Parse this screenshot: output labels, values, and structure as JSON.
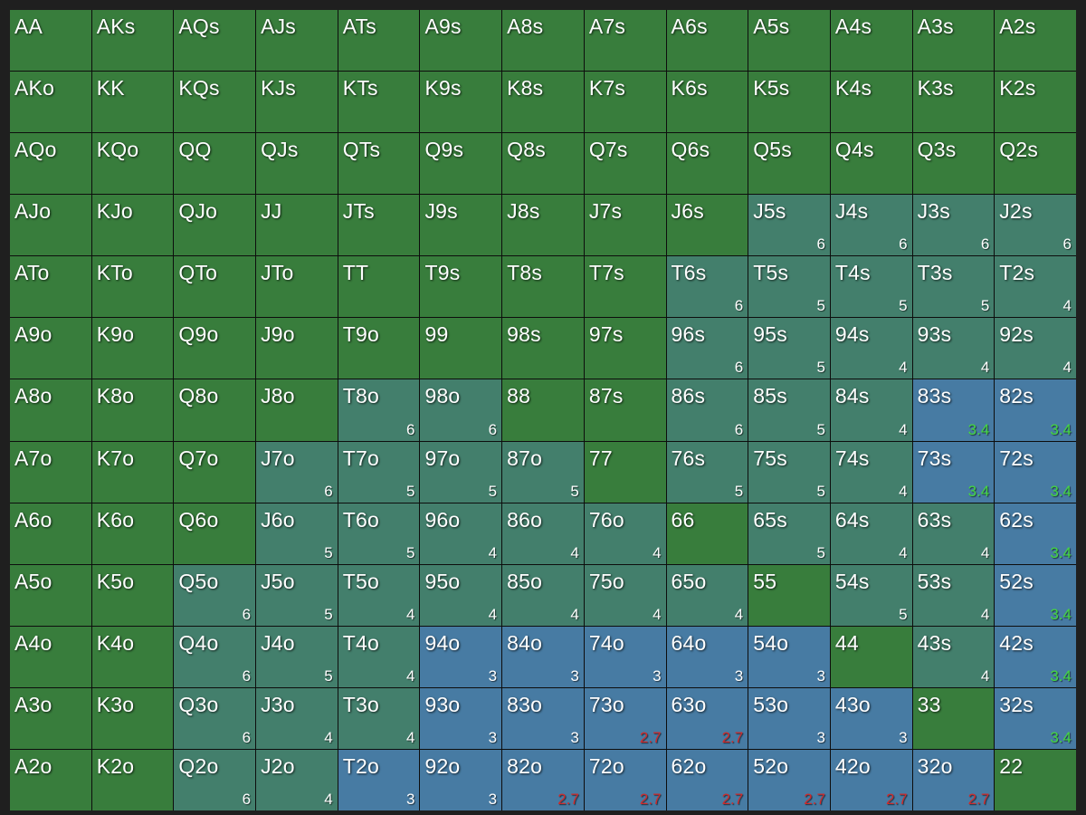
{
  "colors": {
    "background": "#1f1f1f",
    "grid_line": "#0d0d0d",
    "open": "#387d3c",
    "teal": "#437f6c",
    "blue": "#477ba3",
    "hand_text": "#ffffff",
    "badge_default": "#ffffff",
    "badge_green": "#45d641",
    "badge_red": "#d02a2a"
  },
  "rows": [
    [
      {
        "hand": "AA",
        "badge": ""
      },
      {
        "hand": "AKs",
        "badge": ""
      },
      {
        "hand": "AQs",
        "badge": ""
      },
      {
        "hand": "AJs",
        "badge": ""
      },
      {
        "hand": "ATs",
        "badge": ""
      },
      {
        "hand": "A9s",
        "badge": ""
      },
      {
        "hand": "A8s",
        "badge": ""
      },
      {
        "hand": "A7s",
        "badge": ""
      },
      {
        "hand": "A6s",
        "badge": ""
      },
      {
        "hand": "A5s",
        "badge": ""
      },
      {
        "hand": "A4s",
        "badge": ""
      },
      {
        "hand": "A3s",
        "badge": ""
      },
      {
        "hand": "A2s",
        "badge": ""
      }
    ],
    [
      {
        "hand": "AKo",
        "badge": ""
      },
      {
        "hand": "KK",
        "badge": ""
      },
      {
        "hand": "KQs",
        "badge": ""
      },
      {
        "hand": "KJs",
        "badge": ""
      },
      {
        "hand": "KTs",
        "badge": ""
      },
      {
        "hand": "K9s",
        "badge": ""
      },
      {
        "hand": "K8s",
        "badge": ""
      },
      {
        "hand": "K7s",
        "badge": ""
      },
      {
        "hand": "K6s",
        "badge": ""
      },
      {
        "hand": "K5s",
        "badge": ""
      },
      {
        "hand": "K4s",
        "badge": ""
      },
      {
        "hand": "K3s",
        "badge": ""
      },
      {
        "hand": "K2s",
        "badge": ""
      }
    ],
    [
      {
        "hand": "AQo",
        "badge": ""
      },
      {
        "hand": "KQo",
        "badge": ""
      },
      {
        "hand": "QQ",
        "badge": ""
      },
      {
        "hand": "QJs",
        "badge": ""
      },
      {
        "hand": "QTs",
        "badge": ""
      },
      {
        "hand": "Q9s",
        "badge": ""
      },
      {
        "hand": "Q8s",
        "badge": ""
      },
      {
        "hand": "Q7s",
        "badge": ""
      },
      {
        "hand": "Q6s",
        "badge": ""
      },
      {
        "hand": "Q5s",
        "badge": ""
      },
      {
        "hand": "Q4s",
        "badge": ""
      },
      {
        "hand": "Q3s",
        "badge": ""
      },
      {
        "hand": "Q2s",
        "badge": ""
      }
    ],
    [
      {
        "hand": "AJo",
        "badge": ""
      },
      {
        "hand": "KJo",
        "badge": ""
      },
      {
        "hand": "QJo",
        "badge": ""
      },
      {
        "hand": "JJ",
        "badge": ""
      },
      {
        "hand": "JTs",
        "badge": ""
      },
      {
        "hand": "J9s",
        "badge": ""
      },
      {
        "hand": "J8s",
        "badge": ""
      },
      {
        "hand": "J7s",
        "badge": ""
      },
      {
        "hand": "J6s",
        "badge": ""
      },
      {
        "hand": "J5s",
        "badge": "6",
        "tier": "teal"
      },
      {
        "hand": "J4s",
        "badge": "6",
        "tier": "teal"
      },
      {
        "hand": "J3s",
        "badge": "6",
        "tier": "teal"
      },
      {
        "hand": "J2s",
        "badge": "6",
        "tier": "teal"
      }
    ],
    [
      {
        "hand": "ATo",
        "badge": ""
      },
      {
        "hand": "KTo",
        "badge": ""
      },
      {
        "hand": "QTo",
        "badge": ""
      },
      {
        "hand": "JTo",
        "badge": ""
      },
      {
        "hand": "TT",
        "badge": ""
      },
      {
        "hand": "T9s",
        "badge": ""
      },
      {
        "hand": "T8s",
        "badge": ""
      },
      {
        "hand": "T7s",
        "badge": ""
      },
      {
        "hand": "T6s",
        "badge": "6",
        "tier": "teal"
      },
      {
        "hand": "T5s",
        "badge": "5",
        "tier": "teal"
      },
      {
        "hand": "T4s",
        "badge": "5",
        "tier": "teal"
      },
      {
        "hand": "T3s",
        "badge": "5",
        "tier": "teal"
      },
      {
        "hand": "T2s",
        "badge": "4",
        "tier": "teal"
      }
    ],
    [
      {
        "hand": "A9o",
        "badge": ""
      },
      {
        "hand": "K9o",
        "badge": ""
      },
      {
        "hand": "Q9o",
        "badge": ""
      },
      {
        "hand": "J9o",
        "badge": ""
      },
      {
        "hand": "T9o",
        "badge": ""
      },
      {
        "hand": "99",
        "badge": ""
      },
      {
        "hand": "98s",
        "badge": ""
      },
      {
        "hand": "97s",
        "badge": ""
      },
      {
        "hand": "96s",
        "badge": "6",
        "tier": "teal"
      },
      {
        "hand": "95s",
        "badge": "5",
        "tier": "teal"
      },
      {
        "hand": "94s",
        "badge": "4",
        "tier": "teal"
      },
      {
        "hand": "93s",
        "badge": "4",
        "tier": "teal"
      },
      {
        "hand": "92s",
        "badge": "4",
        "tier": "teal"
      }
    ],
    [
      {
        "hand": "A8o",
        "badge": ""
      },
      {
        "hand": "K8o",
        "badge": ""
      },
      {
        "hand": "Q8o",
        "badge": ""
      },
      {
        "hand": "J8o",
        "badge": ""
      },
      {
        "hand": "T8o",
        "badge": "6",
        "tier": "teal"
      },
      {
        "hand": "98o",
        "badge": "6",
        "tier": "teal"
      },
      {
        "hand": "88",
        "badge": ""
      },
      {
        "hand": "87s",
        "badge": ""
      },
      {
        "hand": "86s",
        "badge": "6",
        "tier": "teal"
      },
      {
        "hand": "85s",
        "badge": "5",
        "tier": "teal"
      },
      {
        "hand": "84s",
        "badge": "4",
        "tier": "teal"
      },
      {
        "hand": "83s",
        "badge": "3.4",
        "tier": "blue",
        "badge_color": "green"
      },
      {
        "hand": "82s",
        "badge": "3.4",
        "tier": "blue",
        "badge_color": "green"
      }
    ],
    [
      {
        "hand": "A7o",
        "badge": ""
      },
      {
        "hand": "K7o",
        "badge": ""
      },
      {
        "hand": "Q7o",
        "badge": ""
      },
      {
        "hand": "J7o",
        "badge": "6",
        "tier": "teal"
      },
      {
        "hand": "T7o",
        "badge": "5",
        "tier": "teal"
      },
      {
        "hand": "97o",
        "badge": "5",
        "tier": "teal"
      },
      {
        "hand": "87o",
        "badge": "5",
        "tier": "teal"
      },
      {
        "hand": "77",
        "badge": ""
      },
      {
        "hand": "76s",
        "badge": "5",
        "tier": "teal"
      },
      {
        "hand": "75s",
        "badge": "5",
        "tier": "teal"
      },
      {
        "hand": "74s",
        "badge": "4",
        "tier": "teal"
      },
      {
        "hand": "73s",
        "badge": "3.4",
        "tier": "blue",
        "badge_color": "green"
      },
      {
        "hand": "72s",
        "badge": "3.4",
        "tier": "blue",
        "badge_color": "green"
      }
    ],
    [
      {
        "hand": "A6o",
        "badge": ""
      },
      {
        "hand": "K6o",
        "badge": ""
      },
      {
        "hand": "Q6o",
        "badge": ""
      },
      {
        "hand": "J6o",
        "badge": "5",
        "tier": "teal"
      },
      {
        "hand": "T6o",
        "badge": "5",
        "tier": "teal"
      },
      {
        "hand": "96o",
        "badge": "4",
        "tier": "teal"
      },
      {
        "hand": "86o",
        "badge": "4",
        "tier": "teal"
      },
      {
        "hand": "76o",
        "badge": "4",
        "tier": "teal"
      },
      {
        "hand": "66",
        "badge": ""
      },
      {
        "hand": "65s",
        "badge": "5",
        "tier": "teal"
      },
      {
        "hand": "64s",
        "badge": "4",
        "tier": "teal"
      },
      {
        "hand": "63s",
        "badge": "4",
        "tier": "teal"
      },
      {
        "hand": "62s",
        "badge": "3.4",
        "tier": "blue",
        "badge_color": "green"
      }
    ],
    [
      {
        "hand": "A5o",
        "badge": ""
      },
      {
        "hand": "K5o",
        "badge": ""
      },
      {
        "hand": "Q5o",
        "badge": "6",
        "tier": "teal"
      },
      {
        "hand": "J5o",
        "badge": "5",
        "tier": "teal"
      },
      {
        "hand": "T5o",
        "badge": "4",
        "tier": "teal"
      },
      {
        "hand": "95o",
        "badge": "4",
        "tier": "teal"
      },
      {
        "hand": "85o",
        "badge": "4",
        "tier": "teal"
      },
      {
        "hand": "75o",
        "badge": "4",
        "tier": "teal"
      },
      {
        "hand": "65o",
        "badge": "4",
        "tier": "teal"
      },
      {
        "hand": "55",
        "badge": ""
      },
      {
        "hand": "54s",
        "badge": "5",
        "tier": "teal"
      },
      {
        "hand": "53s",
        "badge": "4",
        "tier": "teal"
      },
      {
        "hand": "52s",
        "badge": "3.4",
        "tier": "blue",
        "badge_color": "green"
      }
    ],
    [
      {
        "hand": "A4o",
        "badge": ""
      },
      {
        "hand": "K4o",
        "badge": ""
      },
      {
        "hand": "Q4o",
        "badge": "6",
        "tier": "teal"
      },
      {
        "hand": "J4o",
        "badge": "5",
        "tier": "teal"
      },
      {
        "hand": "T4o",
        "badge": "4",
        "tier": "teal"
      },
      {
        "hand": "94o",
        "badge": "3",
        "tier": "blue"
      },
      {
        "hand": "84o",
        "badge": "3",
        "tier": "blue"
      },
      {
        "hand": "74o",
        "badge": "3",
        "tier": "blue"
      },
      {
        "hand": "64o",
        "badge": "3",
        "tier": "blue"
      },
      {
        "hand": "54o",
        "badge": "3",
        "tier": "blue"
      },
      {
        "hand": "44",
        "badge": ""
      },
      {
        "hand": "43s",
        "badge": "4",
        "tier": "teal"
      },
      {
        "hand": "42s",
        "badge": "3.4",
        "tier": "blue",
        "badge_color": "green"
      }
    ],
    [
      {
        "hand": "A3o",
        "badge": ""
      },
      {
        "hand": "K3o",
        "badge": ""
      },
      {
        "hand": "Q3o",
        "badge": "6",
        "tier": "teal"
      },
      {
        "hand": "J3o",
        "badge": "4",
        "tier": "teal"
      },
      {
        "hand": "T3o",
        "badge": "4",
        "tier": "teal"
      },
      {
        "hand": "93o",
        "badge": "3",
        "tier": "blue"
      },
      {
        "hand": "83o",
        "badge": "3",
        "tier": "blue"
      },
      {
        "hand": "73o",
        "badge": "2.7",
        "tier": "blue",
        "badge_color": "red"
      },
      {
        "hand": "63o",
        "badge": "2.7",
        "tier": "blue",
        "badge_color": "red"
      },
      {
        "hand": "53o",
        "badge": "3",
        "tier": "blue"
      },
      {
        "hand": "43o",
        "badge": "3",
        "tier": "blue"
      },
      {
        "hand": "33",
        "badge": ""
      },
      {
        "hand": "32s",
        "badge": "3.4",
        "tier": "blue",
        "badge_color": "green"
      }
    ],
    [
      {
        "hand": "A2o",
        "badge": ""
      },
      {
        "hand": "K2o",
        "badge": ""
      },
      {
        "hand": "Q2o",
        "badge": "6",
        "tier": "teal"
      },
      {
        "hand": "J2o",
        "badge": "4",
        "tier": "teal"
      },
      {
        "hand": "T2o",
        "badge": "3",
        "tier": "blue"
      },
      {
        "hand": "92o",
        "badge": "3",
        "tier": "blue"
      },
      {
        "hand": "82o",
        "badge": "2.7",
        "tier": "blue",
        "badge_color": "red"
      },
      {
        "hand": "72o",
        "badge": "2.7",
        "tier": "blue",
        "badge_color": "red"
      },
      {
        "hand": "62o",
        "badge": "2.7",
        "tier": "blue",
        "badge_color": "red"
      },
      {
        "hand": "52o",
        "badge": "2.7",
        "tier": "blue",
        "badge_color": "red"
      },
      {
        "hand": "42o",
        "badge": "2.7",
        "tier": "blue",
        "badge_color": "red"
      },
      {
        "hand": "32o",
        "badge": "2.7",
        "tier": "blue",
        "badge_color": "red"
      },
      {
        "hand": "22",
        "badge": ""
      }
    ]
  ]
}
